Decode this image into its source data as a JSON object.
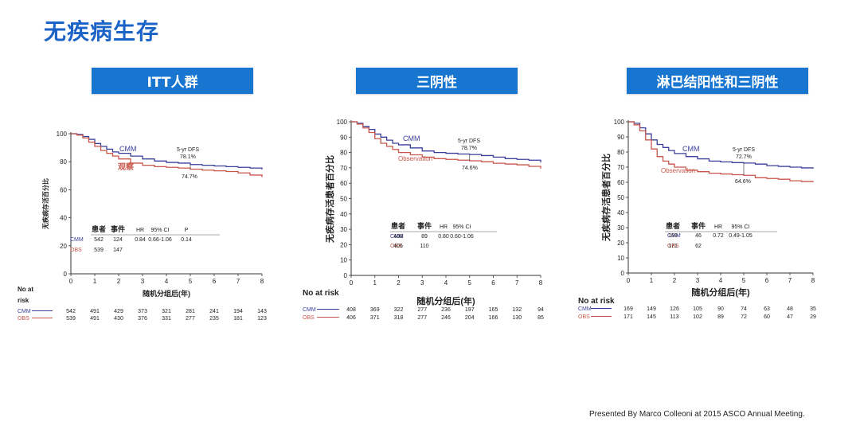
{
  "slide_title": "无疾病生存",
  "footer": "Presented By Marco Colleoni at 2015 ASCO Annual Meeting.",
  "colors": {
    "cmm": "#3a3f9a",
    "obs": "#c8564a",
    "header": "#1876d0",
    "title": "#1c63c7"
  },
  "chart_data": [
    {
      "type": "line",
      "header": "ITT人群",
      "ylabel": "无疾病存活百分比",
      "xlabel": "随机分组后(年)",
      "x_ticks": [
        "0",
        "1",
        "2",
        "3",
        "4",
        "5",
        "6",
        "7",
        "8"
      ],
      "y_ticks": [
        "0",
        "20",
        "40",
        "60",
        "80",
        "100"
      ],
      "xlim": [
        0,
        8
      ],
      "ylim": [
        0,
        100
      ],
      "series": [
        {
          "name": "CMM",
          "label": "CMM",
          "color": "#3a3f9a",
          "points": [
            [
              0,
              100
            ],
            [
              0.25,
              99.5
            ],
            [
              0.5,
              98
            ],
            [
              0.75,
              96
            ],
            [
              1,
              93
            ],
            [
              1.25,
              91
            ],
            [
              1.5,
              89
            ],
            [
              1.75,
              87
            ],
            [
              2,
              86
            ],
            [
              2.5,
              84
            ],
            [
              3,
              82
            ],
            [
              3.5,
              80.5
            ],
            [
              4,
              79.5
            ],
            [
              4.5,
              79
            ],
            [
              5,
              78
            ],
            [
              5.5,
              77.5
            ],
            [
              6,
              77
            ],
            [
              6.5,
              76.5
            ],
            [
              7,
              76
            ],
            [
              7.5,
              75.5
            ],
            [
              8,
              74.5
            ]
          ]
        },
        {
          "name": "OBS",
          "label": "观察",
          "color": "#c8564a",
          "points": [
            [
              0,
              100
            ],
            [
              0.25,
              99
            ],
            [
              0.5,
              97
            ],
            [
              0.75,
              94
            ],
            [
              1,
              91
            ],
            [
              1.25,
              88
            ],
            [
              1.5,
              86
            ],
            [
              1.75,
              84
            ],
            [
              2,
              82
            ],
            [
              2.5,
              79
            ],
            [
              3,
              77.5
            ],
            [
              3.5,
              76.5
            ],
            [
              4,
              76
            ],
            [
              4.5,
              75.5
            ],
            [
              5,
              74.7
            ],
            [
              5.5,
              74
            ],
            [
              6,
              73.5
            ],
            [
              6.5,
              73
            ],
            [
              7,
              72
            ],
            [
              7.5,
              70.5
            ],
            [
              8,
              69
            ]
          ]
        }
      ],
      "dfs_label": "5-yr DFS",
      "dfs_cmm": "78.1%",
      "dfs_obs": "74.7%",
      "stats": {
        "headers": [
          "患者",
          "事件",
          "HR",
          "95% CI",
          "P"
        ],
        "rows": [
          [
            "CMM",
            "542",
            "124",
            "0.84",
            "0.66-1.06",
            "0.14"
          ],
          [
            "OBS",
            "539",
            "147",
            "",
            "",
            ""
          ]
        ]
      },
      "risk_label": "No at risk",
      "risk": [
        {
          "name": "CMM",
          "values": [
            "542",
            "491",
            "429",
            "373",
            "321",
            "281",
            "241",
            "194",
            "143"
          ]
        },
        {
          "name": "OBS",
          "values": [
            "539",
            "491",
            "430",
            "376",
            "331",
            "277",
            "235",
            "181",
            "123"
          ]
        }
      ]
    },
    {
      "type": "line",
      "header": "三阴性",
      "ylabel": "无疾病存活患者百分比",
      "xlabel": "随机分组后(年)",
      "x_ticks": [
        "0",
        "1",
        "2",
        "3",
        "4",
        "5",
        "6",
        "7",
        "8"
      ],
      "y_ticks": [
        "0",
        "10",
        "20",
        "30",
        "40",
        "50",
        "60",
        "70",
        "80",
        "90",
        "100"
      ],
      "xlim": [
        0,
        8
      ],
      "ylim": [
        0,
        100
      ],
      "series": [
        {
          "name": "CMM",
          "label": "CMM",
          "color": "#3a3f9a",
          "points": [
            [
              0,
              100
            ],
            [
              0.25,
              99
            ],
            [
              0.5,
              97
            ],
            [
              0.75,
              95
            ],
            [
              1,
              92
            ],
            [
              1.25,
              90
            ],
            [
              1.5,
              88
            ],
            [
              1.75,
              86
            ],
            [
              2,
              85
            ],
            [
              2.5,
              83
            ],
            [
              3,
              81
            ],
            [
              3.5,
              80
            ],
            [
              4,
              79.5
            ],
            [
              4.5,
              79
            ],
            [
              5,
              78.7
            ],
            [
              5.5,
              78
            ],
            [
              6,
              77
            ],
            [
              6.5,
              76
            ],
            [
              7,
              75.5
            ],
            [
              7.5,
              75
            ],
            [
              8,
              73.5
            ]
          ]
        },
        {
          "name": "OBS",
          "label": "Observation",
          "color": "#c8564a",
          "points": [
            [
              0,
              100
            ],
            [
              0.25,
              98.5
            ],
            [
              0.5,
              96
            ],
            [
              0.75,
              93
            ],
            [
              1,
              89
            ],
            [
              1.25,
              86
            ],
            [
              1.5,
              84
            ],
            [
              1.75,
              82
            ],
            [
              2,
              80
            ],
            [
              2.5,
              78.5
            ],
            [
              3,
              77
            ],
            [
              3.5,
              76
            ],
            [
              4,
              75.5
            ],
            [
              4.5,
              75
            ],
            [
              5,
              74.6
            ],
            [
              5.5,
              74
            ],
            [
              6,
              73
            ],
            [
              6.5,
              72.5
            ],
            [
              7,
              72
            ],
            [
              7.5,
              71
            ],
            [
              8,
              69.5
            ]
          ]
        }
      ],
      "dfs_label": "5-yr DFS",
      "dfs_cmm": "78.7%",
      "dfs_obs": "74.6%",
      "stats": {
        "headers": [
          "患者",
          "事件",
          "HR",
          "95% CI"
        ],
        "rows": [
          [
            "CMM",
            "408",
            "89",
            "0.80",
            "0.60-1.06"
          ],
          [
            "OBS",
            "406",
            "110",
            "",
            ""
          ]
        ]
      },
      "risk_label": "No at risk",
      "risk": [
        {
          "name": "CMM",
          "values": [
            "408",
            "369",
            "322",
            "277",
            "236",
            "197",
            "165",
            "132",
            "94"
          ]
        },
        {
          "name": "OBS",
          "values": [
            "406",
            "371",
            "318",
            "277",
            "246",
            "204",
            "166",
            "130",
            "85"
          ]
        }
      ]
    },
    {
      "type": "line",
      "header": "淋巴结阳性和三阴性",
      "ylabel": "无疾病存活患者百分比",
      "xlabel": "随机分组后(年)",
      "x_ticks": [
        "0",
        "1",
        "2",
        "3",
        "4",
        "5",
        "6",
        "7",
        "8"
      ],
      "y_ticks": [
        "0",
        "10",
        "20",
        "30",
        "40",
        "50",
        "60",
        "70",
        "80",
        "90",
        "100"
      ],
      "xlim": [
        0,
        8
      ],
      "ylim": [
        0,
        100
      ],
      "series": [
        {
          "name": "CMM",
          "label": "CMM",
          "color": "#3a3f9a",
          "points": [
            [
              0,
              100
            ],
            [
              0.25,
              99
            ],
            [
              0.5,
              96
            ],
            [
              0.75,
              92
            ],
            [
              1,
              88
            ],
            [
              1.25,
              85
            ],
            [
              1.5,
              83
            ],
            [
              1.75,
              81
            ],
            [
              2,
              79
            ],
            [
              2.5,
              77
            ],
            [
              3,
              75.5
            ],
            [
              3.5,
              74
            ],
            [
              4,
              73.5
            ],
            [
              4.5,
              73
            ],
            [
              5,
              72.7
            ],
            [
              5.5,
              72
            ],
            [
              6,
              71
            ],
            [
              6.5,
              70.5
            ],
            [
              7,
              70
            ],
            [
              7.5,
              69.5
            ],
            [
              8,
              69
            ]
          ]
        },
        {
          "name": "OBS",
          "label": "Observation",
          "color": "#c8564a",
          "points": [
            [
              0,
              100
            ],
            [
              0.25,
              98
            ],
            [
              0.5,
              94
            ],
            [
              0.75,
              88
            ],
            [
              1,
              82
            ],
            [
              1.25,
              77
            ],
            [
              1.5,
              74
            ],
            [
              1.75,
              72
            ],
            [
              2,
              70
            ],
            [
              2.5,
              68
            ],
            [
              3,
              67
            ],
            [
              3.5,
              66
            ],
            [
              4,
              65.5
            ],
            [
              4.5,
              65
            ],
            [
              5,
              64.6
            ],
            [
              5.5,
              63
            ],
            [
              6,
              62.5
            ],
            [
              6.5,
              62
            ],
            [
              7,
              61
            ],
            [
              7.5,
              60.5
            ],
            [
              8,
              60
            ]
          ]
        }
      ],
      "dfs_label": "5-yr DFS",
      "dfs_cmm": "72.7%",
      "dfs_obs": "64.6%",
      "stats": {
        "headers": [
          "患者",
          "事件",
          "HR",
          "95% CI"
        ],
        "rows": [
          [
            "CMM",
            "169",
            "46",
            "0.72",
            "0.49-1.05"
          ],
          [
            "OBS",
            "171",
            "62",
            "",
            ""
          ]
        ]
      },
      "risk_label": "No at risk",
      "risk": [
        {
          "name": "CMM",
          "values": [
            "169",
            "149",
            "126",
            "105",
            "90",
            "74",
            "63",
            "48",
            "35"
          ]
        },
        {
          "name": "OBS",
          "values": [
            "171",
            "145",
            "113",
            "102",
            "89",
            "72",
            "60",
            "47",
            "29"
          ]
        }
      ]
    }
  ]
}
